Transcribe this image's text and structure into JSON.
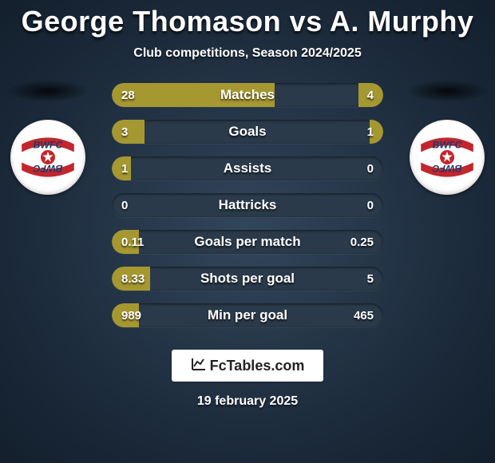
{
  "title": {
    "player1": "George Thomason",
    "vs": "vs",
    "player2": "A. Murphy"
  },
  "subtitle": "Club competitions, Season 2024/2025",
  "colors": {
    "bar_left": "#a69830",
    "bar_right": "#a69830",
    "bar_bg": "#2a3a4a",
    "badge_ribbon": "#c1272d",
    "badge_blue": "#1b3a6b"
  },
  "bars": [
    {
      "label": "Matches",
      "left_val": "28",
      "right_val": "4",
      "left_pct": 60,
      "right_pct": 9
    },
    {
      "label": "Goals",
      "left_val": "3",
      "right_val": "1",
      "left_pct": 12,
      "right_pct": 5
    },
    {
      "label": "Assists",
      "left_val": "1",
      "right_val": "0",
      "left_pct": 7,
      "right_pct": 0
    },
    {
      "label": "Hattricks",
      "left_val": "0",
      "right_val": "0",
      "left_pct": 0,
      "right_pct": 0
    },
    {
      "label": "Goals per match",
      "left_val": "0.11",
      "right_val": "0.25",
      "left_pct": 10,
      "right_pct": 0
    },
    {
      "label": "Shots per goal",
      "left_val": "8.33",
      "right_val": "5",
      "left_pct": 14,
      "right_pct": 0
    },
    {
      "label": "Min per goal",
      "left_val": "989",
      "right_val": "465",
      "left_pct": 10,
      "right_pct": 0
    }
  ],
  "footer": {
    "brand": "FcTables.com",
    "date": "19 february 2025"
  }
}
